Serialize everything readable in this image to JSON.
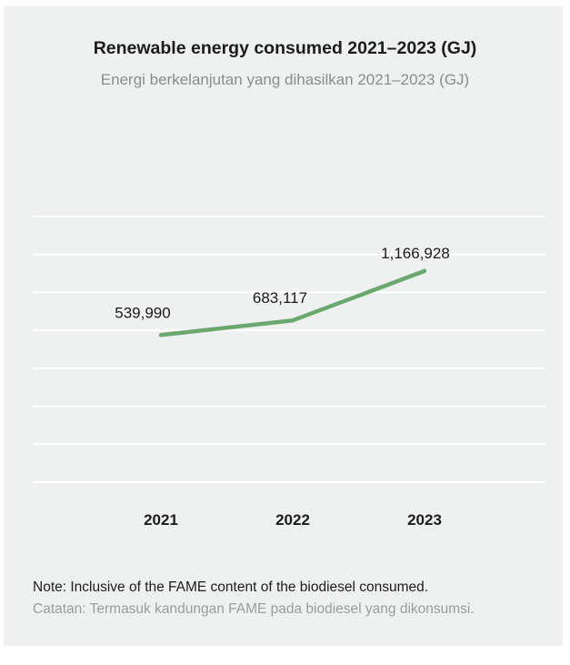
{
  "title": "Renewable energy consumed 2021–2023 (GJ)",
  "subtitle": "Energi berkelanjutan yang dihasilkan 2021–2023 (GJ)",
  "note": {
    "en": "Note: Inclusive of the FAME content of the biodiesel consumed.",
    "id": "Catatan: Termasuk kandungan FAME pada biodiesel yang dikonsumsi."
  },
  "colors": {
    "background": "#eff1f0",
    "line": "#6aa86e",
    "gridline": "#ffffff",
    "title": "#1c1c1c",
    "subtitle": "#8a8d8c"
  },
  "chart_data": {
    "type": "line",
    "categories": [
      "2021",
      "2022",
      "2023"
    ],
    "series": [
      {
        "values": [
          539990,
          683117,
          1166928
        ],
        "labels": [
          "539,990",
          "683,117",
          "1,166,928"
        ]
      }
    ],
    "ylim": [
      -900000,
      1700000
    ],
    "grid": true,
    "xlabel": "",
    "ylabel": ""
  }
}
